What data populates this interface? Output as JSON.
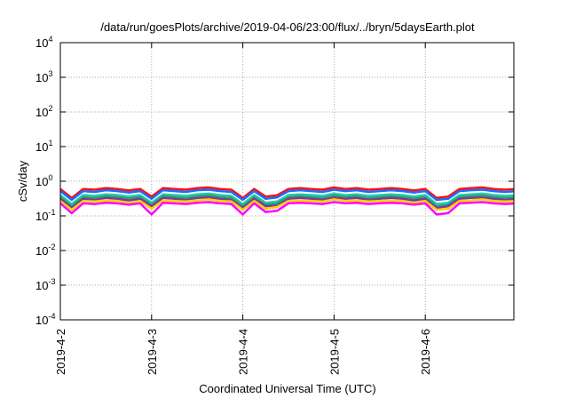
{
  "chart_data": {
    "type": "line",
    "title": "/data/run/goesPlots/archive/2019-04-06/23:00/flux/../bryn/5daysEarth.plot",
    "xlabel": "Coordinated Universal Time (UTC)",
    "ylabel": "cSv/day",
    "yscale": "log",
    "ylim": [
      0.0001,
      10000
    ],
    "yticks": [
      {
        "base": "10",
        "exp": "4",
        "v": 4
      },
      {
        "base": "10",
        "exp": "3",
        "v": 3
      },
      {
        "base": "10",
        "exp": "2",
        "v": 2
      },
      {
        "base": "10",
        "exp": "1",
        "v": 1
      },
      {
        "base": "10",
        "exp": "0",
        "v": 0
      },
      {
        "base": "10",
        "exp": "-1",
        "v": -1
      },
      {
        "base": "10",
        "exp": "-2",
        "v": -2
      },
      {
        "base": "10",
        "exp": "-3",
        "v": -3
      },
      {
        "base": "10",
        "exp": "-4",
        "v": -4
      }
    ],
    "xlim_hours": [
      0,
      119.3
    ],
    "xticks": [
      {
        "label": "2019-4-2",
        "h": 0
      },
      {
        "label": "2019-4-3",
        "h": 24
      },
      {
        "label": "2019-4-4",
        "h": 48
      },
      {
        "label": "2019-4-5",
        "h": 72
      },
      {
        "label": "2019-4-6",
        "h": 96
      }
    ],
    "grid": true,
    "x_hours": [
      0,
      3,
      6,
      9,
      12,
      15,
      18,
      21,
      24,
      27,
      30,
      33,
      36,
      39,
      42,
      45,
      48,
      51,
      54,
      57,
      60,
      63,
      66,
      69,
      72,
      75,
      78,
      81,
      84,
      87,
      90,
      93,
      96,
      99,
      102,
      105,
      108,
      111,
      114,
      117,
      120
    ],
    "series": [
      {
        "name": "red",
        "color": "#ff1010",
        "values": [
          0.6,
          0.33,
          0.6,
          0.57,
          0.63,
          0.6,
          0.54,
          0.6,
          0.36,
          0.63,
          0.6,
          0.57,
          0.63,
          0.66,
          0.6,
          0.57,
          0.33,
          0.6,
          0.36,
          0.39,
          0.6,
          0.63,
          0.6,
          0.57,
          0.66,
          0.6,
          0.63,
          0.57,
          0.6,
          0.63,
          0.6,
          0.54,
          0.6,
          0.33,
          0.36,
          0.6,
          0.63,
          0.66,
          0.6,
          0.57,
          0.6
        ]
      },
      {
        "name": "blue",
        "color": "#1a6cff",
        "values": [
          0.52,
          0.29,
          0.52,
          0.49,
          0.55,
          0.52,
          0.47,
          0.52,
          0.31,
          0.55,
          0.52,
          0.49,
          0.55,
          0.57,
          0.52,
          0.49,
          0.29,
          0.52,
          0.31,
          0.34,
          0.52,
          0.55,
          0.52,
          0.49,
          0.57,
          0.52,
          0.55,
          0.49,
          0.52,
          0.55,
          0.52,
          0.47,
          0.52,
          0.29,
          0.31,
          0.52,
          0.55,
          0.57,
          0.52,
          0.49,
          0.52
        ]
      },
      {
        "name": "teal",
        "color": "#20d0b0",
        "values": [
          0.4,
          0.22,
          0.4,
          0.38,
          0.42,
          0.4,
          0.36,
          0.4,
          0.24,
          0.42,
          0.4,
          0.38,
          0.42,
          0.44,
          0.4,
          0.38,
          0.22,
          0.4,
          0.24,
          0.26,
          0.4,
          0.42,
          0.4,
          0.38,
          0.44,
          0.4,
          0.42,
          0.38,
          0.4,
          0.42,
          0.4,
          0.36,
          0.4,
          0.22,
          0.24,
          0.4,
          0.42,
          0.44,
          0.4,
          0.38,
          0.4
        ]
      },
      {
        "name": "green",
        "color": "#30a070",
        "values": [
          0.35,
          0.19,
          0.35,
          0.33,
          0.37,
          0.35,
          0.32,
          0.35,
          0.21,
          0.37,
          0.35,
          0.33,
          0.37,
          0.39,
          0.35,
          0.33,
          0.19,
          0.35,
          0.21,
          0.23,
          0.35,
          0.37,
          0.35,
          0.33,
          0.39,
          0.35,
          0.37,
          0.33,
          0.35,
          0.37,
          0.35,
          0.32,
          0.35,
          0.19,
          0.21,
          0.35,
          0.37,
          0.39,
          0.35,
          0.33,
          0.35
        ]
      },
      {
        "name": "purple",
        "color": "#7a3aa0",
        "values": [
          0.31,
          0.17,
          0.31,
          0.29,
          0.33,
          0.31,
          0.28,
          0.31,
          0.19,
          0.33,
          0.31,
          0.29,
          0.33,
          0.34,
          0.31,
          0.29,
          0.17,
          0.31,
          0.19,
          0.2,
          0.31,
          0.33,
          0.31,
          0.29,
          0.34,
          0.31,
          0.33,
          0.29,
          0.31,
          0.33,
          0.31,
          0.28,
          0.31,
          0.17,
          0.19,
          0.31,
          0.33,
          0.34,
          0.31,
          0.29,
          0.31
        ]
      },
      {
        "name": "yellow",
        "color": "#ffd000",
        "values": [
          0.27,
          0.15,
          0.27,
          0.26,
          0.28,
          0.27,
          0.24,
          0.27,
          0.16,
          0.28,
          0.27,
          0.26,
          0.28,
          0.3,
          0.27,
          0.26,
          0.15,
          0.27,
          0.16,
          0.18,
          0.27,
          0.28,
          0.27,
          0.26,
          0.3,
          0.27,
          0.28,
          0.26,
          0.27,
          0.28,
          0.27,
          0.24,
          0.27,
          0.15,
          0.16,
          0.27,
          0.28,
          0.3,
          0.27,
          0.26,
          0.27
        ]
      },
      {
        "name": "magenta",
        "color": "#ff00ff",
        "values": [
          0.23,
          0.12,
          0.23,
          0.22,
          0.24,
          0.23,
          0.21,
          0.23,
          0.11,
          0.24,
          0.23,
          0.22,
          0.24,
          0.25,
          0.23,
          0.22,
          0.11,
          0.23,
          0.13,
          0.14,
          0.23,
          0.24,
          0.23,
          0.22,
          0.25,
          0.23,
          0.24,
          0.22,
          0.23,
          0.24,
          0.23,
          0.21,
          0.23,
          0.11,
          0.12,
          0.23,
          0.24,
          0.25,
          0.23,
          0.22,
          0.23
        ]
      }
    ]
  }
}
